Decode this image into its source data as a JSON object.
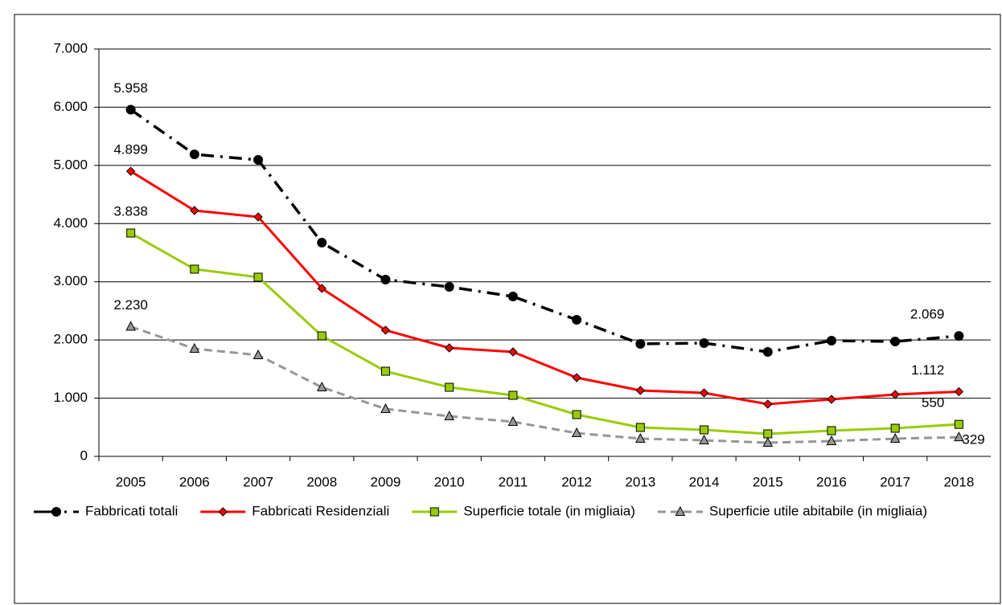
{
  "chart_data": {
    "type": "line",
    "categories": [
      "2005",
      "2006",
      "2007",
      "2008",
      "2009",
      "2010",
      "2011",
      "2012",
      "2013",
      "2014",
      "2015",
      "2016",
      "2017",
      "2018"
    ],
    "series": [
      {
        "name": "Fabbricati totali",
        "color": "#000000",
        "dash": "16 8 3 8",
        "marker": "circle",
        "values": [
          5958,
          5190,
          5094,
          3672,
          3037,
          2913,
          2747,
          2347,
          1933,
          1947,
          1795,
          1988,
          1974,
          2069
        ],
        "value_labels": [
          "5.958",
          null,
          null,
          null,
          null,
          null,
          null,
          null,
          null,
          null,
          null,
          null,
          null,
          "2.069"
        ]
      },
      {
        "name": "Fabbricati Residenziali",
        "color": "#ff0000",
        "dash": "",
        "marker": "diamond",
        "values": [
          4899,
          4225,
          4114,
          2886,
          2168,
          1864,
          1795,
          1353,
          1132,
          1091,
          897,
          980,
          1063,
          1112
        ],
        "value_labels": [
          "4.899",
          null,
          null,
          null,
          null,
          null,
          null,
          null,
          null,
          null,
          null,
          null,
          null,
          "1.112"
        ]
      },
      {
        "name": "Superficie totale (in migliaia)",
        "color": "#99cc00",
        "dash": "",
        "marker": "square",
        "values": [
          3838,
          3217,
          3079,
          2071,
          1463,
          1187,
          1049,
          718,
          497,
          456,
          387,
          442,
          483,
          550
        ],
        "value_labels": [
          "3.838",
          null,
          null,
          null,
          null,
          null,
          null,
          null,
          null,
          null,
          null,
          null,
          null,
          "550"
        ]
      },
      {
        "name": "Superficie utile abitabile (in migliaia)",
        "color": "#969696",
        "dash": "10 6",
        "marker": "triangle",
        "values": [
          2230,
          1850,
          1740,
          1187,
          815,
          690,
          594,
          400,
          304,
          276,
          235,
          262,
          304,
          329
        ],
        "value_labels": [
          "2.230",
          null,
          null,
          null,
          null,
          null,
          null,
          null,
          null,
          null,
          null,
          null,
          null,
          "329"
        ]
      }
    ],
    "ylim": [
      0,
      7000
    ],
    "yticks": [
      0,
      {
        "value": 1000,
        "label": "1.000"
      },
      {
        "value": 2000,
        "label": "2.000"
      },
      {
        "value": 3000,
        "label": "3.000"
      },
      {
        "value": 4000,
        "label": "4.000"
      },
      {
        "value": 5000,
        "label": "5.000"
      },
      {
        "value": 6000,
        "label": "6.000"
      },
      {
        "value": 7000,
        "label": "7.000"
      }
    ],
    "grid": true,
    "legend": "bottom"
  }
}
